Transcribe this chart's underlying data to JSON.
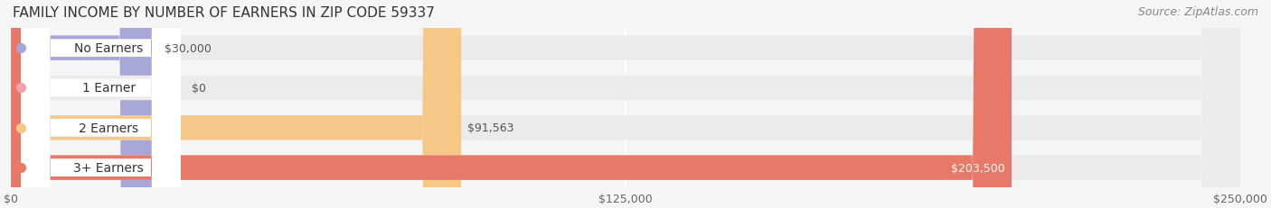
{
  "title": "FAMILY INCOME BY NUMBER OF EARNERS IN ZIP CODE 59337",
  "source": "Source: ZipAtlas.com",
  "categories": [
    "No Earners",
    "1 Earner",
    "2 Earners",
    "3+ Earners"
  ],
  "values": [
    30000,
    0,
    91563,
    203500
  ],
  "bar_colors": [
    "#a8a8d8",
    "#f4a0b0",
    "#f5c888",
    "#e87868"
  ],
  "label_colors": [
    "#333333",
    "#333333",
    "#333333",
    "#ffffff"
  ],
  "value_labels": [
    "$30,000",
    "$0",
    "$91,563",
    "$203,500"
  ],
  "xlim": [
    0,
    250000
  ],
  "xticks": [
    0,
    125000,
    250000
  ],
  "xtick_labels": [
    "$0",
    "$125,000",
    "$250,000"
  ],
  "bg_color": "#f5f5f5",
  "bar_bg_color": "#ebebeb",
  "title_fontsize": 11,
  "source_fontsize": 9,
  "label_fontsize": 10,
  "value_fontsize": 9
}
